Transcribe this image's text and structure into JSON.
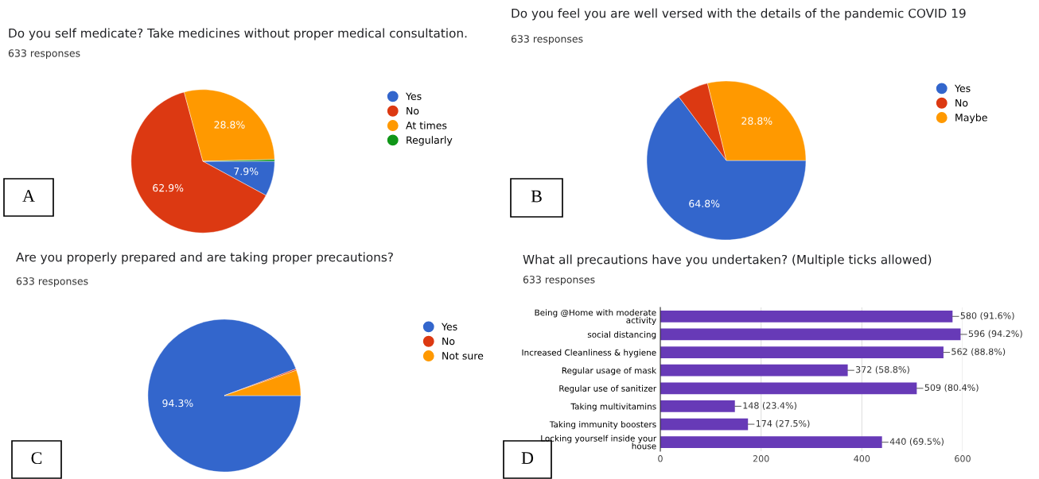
{
  "chart_data": [
    {
      "type": "pie",
      "title": "Do you self medicate? Take medicines without proper medical consultation.",
      "subtitle": "633 responses",
      "categories": [
        "Yes",
        "No",
        "At times",
        "Regularly"
      ],
      "values": [
        7.9,
        62.9,
        28.8,
        0.4
      ],
      "colors": [
        "#3366cc",
        "#dc3912",
        "#ff9900",
        "#109618"
      ],
      "value_labels": [
        "7.9%",
        "62.9%",
        "28.8%",
        null
      ],
      "legend": "right",
      "annotations": [
        "A"
      ]
    },
    {
      "type": "pie",
      "title": "Do you feel you are well versed with the details of the pandemic COVID 19",
      "subtitle": "633 responses",
      "categories": [
        "Yes",
        "No",
        "Maybe"
      ],
      "values": [
        64.8,
        6.4,
        28.8
      ],
      "colors": [
        "#3366cc",
        "#dc3912",
        "#ff9900"
      ],
      "value_labels": [
        "64.8%",
        null,
        "28.8%"
      ],
      "legend": "right",
      "annotations": [
        "B"
      ]
    },
    {
      "type": "pie",
      "title": "Are you properly prepared and are taking proper precautions?",
      "subtitle": "633 responses",
      "categories": [
        "Yes",
        "No",
        "Not sure"
      ],
      "values": [
        94.3,
        0.3,
        5.4
      ],
      "colors": [
        "#3366cc",
        "#dc3912",
        "#ff9900"
      ],
      "value_labels": [
        "94.3%",
        null,
        null
      ],
      "legend": "right",
      "annotations": [
        "C"
      ]
    },
    {
      "type": "bar",
      "orientation": "horizontal",
      "title": "What all precautions have you undertaken? (Multiple ticks allowed)",
      "subtitle": "633 responses",
      "categories": [
        "Being @Home with moderate\nactivity",
        "social distancing",
        "Increased Cleanliness & hygiene",
        "Regular usage of mask",
        "Regular use of sanitizer",
        "Taking multivitamins",
        "Taking immunity boosters",
        "Locking yourself inside your\nhouse"
      ],
      "values": [
        580,
        596,
        562,
        372,
        509,
        148,
        174,
        440
      ],
      "color": "#673ab7",
      "value_labels": [
        "580 (91.6%)",
        "596 (94.2%)",
        "562 (88.8%)",
        "372 (58.8%)",
        "509 (80.4%)",
        "148 (23.4%)",
        "174 (27.5%)",
        "440 (69.5%)"
      ],
      "xlim": [
        0,
        600
      ],
      "xticks": [
        0,
        200,
        400,
        600
      ],
      "grid": "x",
      "annotations": [
        "D"
      ]
    }
  ]
}
